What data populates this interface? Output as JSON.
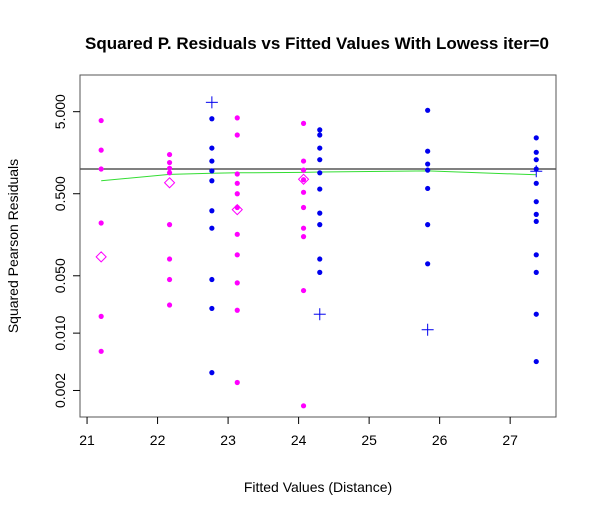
{
  "chart_data": {
    "type": "scatter",
    "title": "Squared P. Residuals vs Fitted Values With Lowess iter=0",
    "xlabel": "Fitted Values (Distance)",
    "ylabel": "Squared Pearson Residuals",
    "x_scale": "linear",
    "y_scale": "log",
    "xlim": [
      20.9,
      27.65
    ],
    "ylim": [
      0.00095,
      14.0
    ],
    "x_ticks": [
      21,
      22,
      23,
      24,
      25,
      26,
      27
    ],
    "y_ticks": [
      0.002,
      0.01,
      0.05,
      0.5,
      5
    ],
    "y_tick_labels": [
      "0.002",
      "0.010",
      "0.050",
      "0.500",
      "5.000"
    ],
    "reference_line_y": 1.0,
    "colors": {
      "magenta": "#ff00ff",
      "blue": "#0000ee",
      "lowess": "#33dd33",
      "reference": "#000000"
    },
    "series": [
      {
        "color": "#ff00ff",
        "marker": "dot",
        "points": [
          [
            21.2,
            3.9
          ],
          [
            21.2,
            1.7
          ],
          [
            21.2,
            1.0
          ],
          [
            21.2,
            0.22
          ],
          [
            21.2,
            0.016
          ],
          [
            21.2,
            0.006
          ],
          [
            22.17,
            1.5
          ],
          [
            22.17,
            1.2
          ],
          [
            22.17,
            1.02
          ],
          [
            22.17,
            0.9
          ],
          [
            22.17,
            0.21
          ],
          [
            22.17,
            0.08
          ],
          [
            22.17,
            0.045
          ],
          [
            22.17,
            0.022
          ],
          [
            23.13,
            4.2
          ],
          [
            23.13,
            2.6
          ],
          [
            23.13,
            0.87
          ],
          [
            23.13,
            0.67
          ],
          [
            23.13,
            0.5
          ],
          [
            23.13,
            0.34
          ],
          [
            23.13,
            0.16
          ],
          [
            23.13,
            0.09
          ],
          [
            23.13,
            0.041
          ],
          [
            23.13,
            0.019
          ],
          [
            23.13,
            0.0025
          ],
          [
            24.07,
            3.6
          ],
          [
            24.07,
            1.25
          ],
          [
            24.07,
            0.97
          ],
          [
            24.07,
            0.74
          ],
          [
            24.07,
            0.52
          ],
          [
            24.07,
            0.34
          ],
          [
            24.07,
            0.19
          ],
          [
            24.07,
            0.15
          ],
          [
            24.07,
            0.033
          ],
          [
            24.07,
            0.0013
          ]
        ]
      },
      {
        "color": "#0000ee",
        "marker": "dot",
        "points": [
          [
            22.77,
            4.1
          ],
          [
            22.77,
            1.8
          ],
          [
            22.77,
            1.25
          ],
          [
            22.77,
            0.95
          ],
          [
            22.77,
            0.72
          ],
          [
            22.77,
            0.31
          ],
          [
            22.77,
            0.19
          ],
          [
            22.77,
            0.045
          ],
          [
            22.77,
            0.02
          ],
          [
            22.77,
            0.0033
          ],
          [
            24.3,
            3.0
          ],
          [
            24.3,
            2.6
          ],
          [
            24.3,
            1.8
          ],
          [
            24.3,
            1.3
          ],
          [
            24.3,
            0.9
          ],
          [
            24.3,
            0.57
          ],
          [
            24.3,
            0.29
          ],
          [
            24.3,
            0.21
          ],
          [
            24.3,
            0.08
          ],
          [
            24.3,
            0.055
          ],
          [
            25.83,
            5.2
          ],
          [
            25.83,
            1.65
          ],
          [
            25.83,
            1.15
          ],
          [
            25.83,
            0.97
          ],
          [
            25.83,
            0.58
          ],
          [
            25.83,
            0.21
          ],
          [
            25.83,
            0.07
          ],
          [
            27.37,
            2.4
          ],
          [
            27.37,
            1.6
          ],
          [
            27.37,
            1.3
          ],
          [
            27.37,
            1.0
          ],
          [
            27.37,
            0.67
          ],
          [
            27.37,
            0.4
          ],
          [
            27.37,
            0.28
          ],
          [
            27.37,
            0.23
          ],
          [
            27.37,
            0.09
          ],
          [
            27.37,
            0.055
          ],
          [
            27.37,
            0.017
          ],
          [
            27.37,
            0.0045
          ]
        ]
      },
      {
        "color": "#0000ee",
        "marker": "plus",
        "points": [
          [
            22.77,
            6.5
          ],
          [
            24.3,
            0.017
          ],
          [
            25.83,
            0.011
          ],
          [
            27.37,
            0.94
          ]
        ]
      },
      {
        "color": "#ff00ff",
        "marker": "diamond",
        "points": [
          [
            21.2,
            0.085
          ],
          [
            22.17,
            0.68
          ],
          [
            23.13,
            0.32
          ],
          [
            24.07,
            0.75
          ]
        ]
      }
    ],
    "lowess": {
      "color": "#33dd33",
      "x": [
        21.2,
        22.17,
        22.77,
        23.13,
        24.07,
        24.3,
        25.83,
        27.37
      ],
      "y": [
        0.72,
        0.86,
        0.89,
        0.9,
        0.91,
        0.92,
        0.95,
        0.85
      ]
    }
  }
}
